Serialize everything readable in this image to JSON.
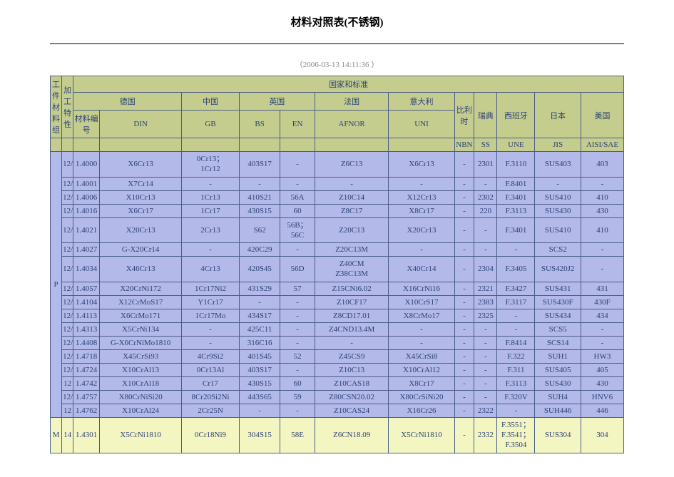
{
  "title": "材料对照表(不锈钢)",
  "timestamp": "（2006-03-13  14:11:36  ）",
  "headers": {
    "group1": "工件材料组",
    "group2": "加工特性",
    "countries_std": "国家和标准",
    "germany": "德国",
    "china": "中国",
    "uk": "英国",
    "france": "法国",
    "italy": "意大利",
    "belgium": "比利时",
    "sweden": "瑞典",
    "spain": "西班牙",
    "japan": "日本",
    "usa": "美国",
    "mat_no": "材料编号",
    "din": "DIN",
    "gb": "GB",
    "bs": "BS",
    "en": "EN",
    "afnor": "AFNOR",
    "uni": "UNI",
    "nbn": "NBN",
    "ss": "SS",
    "une": "UNE",
    "jis": "JIS",
    "aisi": "AISI/SAE"
  },
  "group_p": "P",
  "group_m": "M",
  "rows_p": [
    {
      "proc": "12/13",
      "code": "1.4000",
      "din": "X6Cr13",
      "gb": "0Cr13；\n1Cr12",
      "bs": "403S17",
      "en": "-",
      "afnor": "Z6C13",
      "uni": "X6Cr13",
      "nbn": "-",
      "ss": "2301",
      "une": "F.3110",
      "jis": "SUS403",
      "aisi": "403"
    },
    {
      "proc": "12/13",
      "code": "1.4001",
      "din": "X7Cr14",
      "gb": "-",
      "bs": "-",
      "en": "-",
      "afnor": "-",
      "uni": "-",
      "nbn": "-",
      "ss": "-",
      "une": "F.8401",
      "jis": "-",
      "aisi": "-"
    },
    {
      "proc": "12/13",
      "code": "1.4006",
      "din": "X10Cr13",
      "gb": "1Cr13",
      "bs": "410S21",
      "en": "56A",
      "afnor": "Z10C14",
      "uni": "X12Cr13",
      "nbn": "-",
      "ss": "2302",
      "une": "F.3401",
      "jis": "SUS410",
      "aisi": "410"
    },
    {
      "proc": "12/13",
      "code": "1.4016",
      "din": "X6Cr17",
      "gb": "1Cr17",
      "bs": "430S15",
      "en": "60",
      "afnor": "Z8C17",
      "uni": "X8Cr17",
      "nbn": "-",
      "ss": "220",
      "une": "F.3113",
      "jis": "SUS430",
      "aisi": "430"
    },
    {
      "proc": "12/13",
      "code": "1.4021",
      "din": "X20Cr13",
      "gb": "2Cr13",
      "bs": "S62",
      "en": "56B；\n56C",
      "afnor": "Z20C13",
      "uni": "X20Cr13",
      "nbn": "-",
      "ss": "-",
      "une": "F.3401",
      "jis": "SUS410",
      "aisi": "410"
    },
    {
      "proc": "12/13",
      "code": "1.4027",
      "din": "G-X20Cr14",
      "gb": "-",
      "bs": "420C29",
      "en": "-",
      "afnor": "Z20C13M",
      "uni": "-",
      "nbn": "-",
      "ss": "-",
      "une": "-",
      "jis": "SCS2",
      "aisi": "-"
    },
    {
      "proc": "12/13",
      "code": "1.4034",
      "din": "X46Cr13",
      "gb": "4Cr13",
      "bs": "420S45",
      "en": "56D",
      "afnor": "Z40CM\nZ38C13M",
      "uni": "X40Cr14",
      "nbn": "-",
      "ss": "2304",
      "une": "F.3405",
      "jis": "SUS420J2",
      "aisi": "-"
    },
    {
      "proc": "12/13",
      "code": "1.4057",
      "din": "X20CrNi172",
      "gb": "1Cr17Ni2",
      "bs": "431S29",
      "en": "57",
      "afnor": "Z15CNi6.02",
      "uni": "X16CrNi16",
      "nbn": "-",
      "ss": "2321",
      "une": "F.3427",
      "jis": "SUS431",
      "aisi": "431"
    },
    {
      "proc": "12/13",
      "code": "1.4104",
      "din": "X12CrMoS17",
      "gb": "Y1Cr17",
      "bs": "-",
      "en": "-",
      "afnor": "Z10CF17",
      "uni": "X10CrS17",
      "nbn": "-",
      "ss": "2383",
      "une": "F.3117",
      "jis": "SUS430F",
      "aisi": "430F"
    },
    {
      "proc": "12/13",
      "code": "1.4113",
      "din": "X6CrMo171",
      "gb": "1Cr17Mo",
      "bs": "434S17",
      "en": "-",
      "afnor": "Z8CD17.01",
      "uni": "X8CrMo17",
      "nbn": "-",
      "ss": "2325",
      "une": "-",
      "jis": "SUS434",
      "aisi": "434"
    },
    {
      "proc": "12/13",
      "code": "1.4313",
      "din": "X5CrNi134",
      "gb": "-",
      "bs": "425C11",
      "en": "-",
      "afnor": "Z4CND13.4M",
      "uni": "-",
      "nbn": "-",
      "ss": "-",
      "une": "-",
      "jis": "SCS5",
      "aisi": "-"
    },
    {
      "proc": "12/13",
      "code": "1.4408",
      "din": "G-X6CrNiMo1810",
      "gb": "-",
      "bs": "316C16",
      "en": "-",
      "afnor": "-",
      "uni": "-",
      "nbn": "-",
      "ss": "-",
      "une": "F.8414",
      "jis": "SCS14",
      "aisi": "-"
    },
    {
      "proc": "12/13",
      "code": "1.4718",
      "din": "X45CrSi93",
      "gb": "4Cr9Si2",
      "bs": "401S45",
      "en": "52",
      "afnor": "Z45CS9",
      "uni": "X45CrSi8",
      "nbn": "-",
      "ss": "-",
      "une": "F.322",
      "jis": "SUH1",
      "aisi": "HW3"
    },
    {
      "proc": "12/13",
      "code": "1.4724",
      "din": "X10CrAl13",
      "gb": "0Cr13Al",
      "bs": "403S17",
      "en": "-",
      "afnor": "Z10C13",
      "uni": "X10CrAl12",
      "nbn": "-",
      "ss": "-",
      "une": "F.311",
      "jis": "SUS405",
      "aisi": "405"
    },
    {
      "proc": "12",
      "code": "1.4742",
      "din": "X10CrAl18",
      "gb": "Cr17",
      "bs": "430S15",
      "en": "60",
      "afnor": "Z10CAS18",
      "uni": "X8Cr17",
      "nbn": "-",
      "ss": "-",
      "une": "F.3113",
      "jis": "SUS430",
      "aisi": "430"
    },
    {
      "proc": "12/13",
      "code": "1.4757",
      "din": "X80CrNiSi20",
      "gb": "8Cr20Si2Ni",
      "bs": "443S65",
      "en": "59",
      "afnor": "Z80CSN20.02",
      "uni": "X80CrSiNi20",
      "nbn": "-",
      "ss": "-",
      "une": "F.320V",
      "jis": "SUH4",
      "aisi": "HNV6"
    },
    {
      "proc": "12",
      "code": "1.4762",
      "din": "X10CrAl24",
      "gb": "2Cr25N",
      "bs": "-",
      "en": "-",
      "afnor": "Z10CAS24",
      "uni": "X16Cr26",
      "nbn": "-",
      "ss": "2322",
      "une": "-",
      "jis": "SUH446",
      "aisi": "446"
    }
  ],
  "rows_m": [
    {
      "proc": "14",
      "code": "1.4301",
      "din": "X5CrNi1810",
      "gb": "0Cr18Ni9",
      "bs": "304S15",
      "en": "58E",
      "afnor": "Z6CN18.09",
      "uni": "X5CrNi1810",
      "nbn": "-",
      "ss": "2332",
      "une": "F.3551；\nF.3541；\nF.3504",
      "jis": "SUS304",
      "aisi": "304"
    }
  ],
  "colors": {
    "header_bg": "#c5cd8e",
    "p_bg": "#b3b9e8",
    "m_bg": "#f4f6c2",
    "border": "#4a5d8a",
    "text": "#2c4278"
  }
}
